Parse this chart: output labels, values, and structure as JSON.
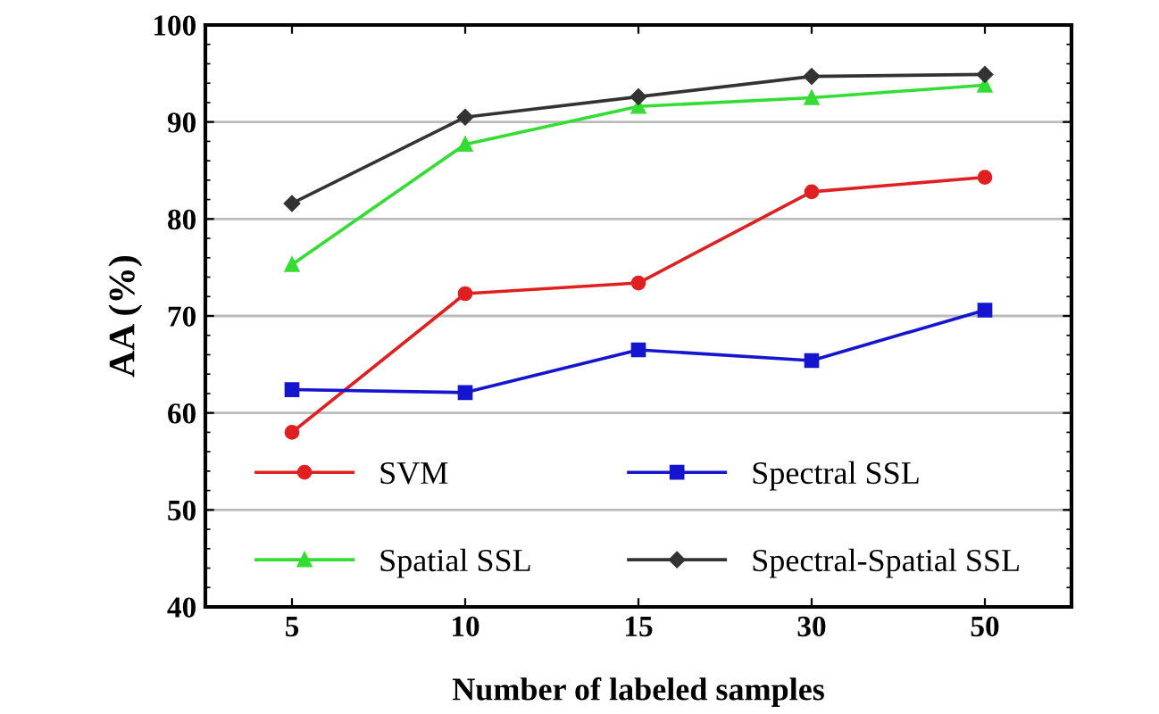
{
  "chart_data": {
    "type": "line",
    "xlabel": "Number of labeled samples",
    "ylabel": "AA (%)",
    "categories": [
      "5",
      "10",
      "15",
      "30",
      "50"
    ],
    "series": [
      {
        "name": "SVM",
        "color": "#e02020",
        "marker": "circle",
        "values": [
          58.0,
          72.3,
          73.4,
          82.8,
          84.3
        ]
      },
      {
        "name": "Spectral SSL",
        "color": "#1515d0",
        "marker": "square",
        "values": [
          62.4,
          62.1,
          66.5,
          65.4,
          70.6
        ]
      },
      {
        "name": "Spatial SSL",
        "color": "#33dd33",
        "marker": "triangle",
        "values": [
          75.3,
          87.7,
          91.6,
          92.5,
          93.8
        ]
      },
      {
        "name": "Spectral-Spatial SSL",
        "color": "#333333",
        "marker": "diamond",
        "values": [
          81.6,
          90.5,
          92.6,
          94.7,
          94.9
        ]
      }
    ],
    "ylim": [
      40,
      100
    ],
    "yticks": [
      40,
      50,
      60,
      70,
      80,
      90,
      100
    ],
    "grid": "y",
    "legend": "bottom",
    "line_style": "solid"
  }
}
